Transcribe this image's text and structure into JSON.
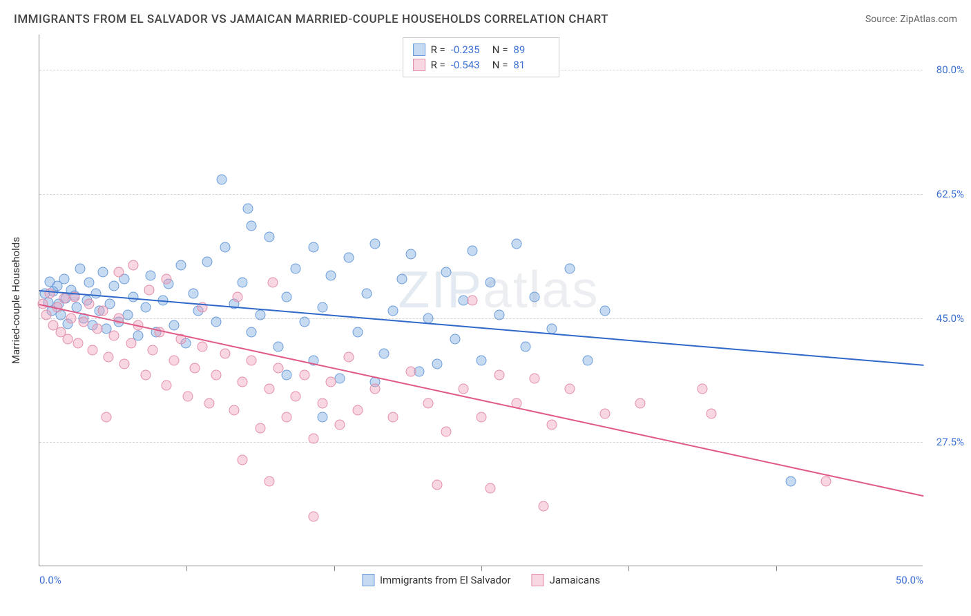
{
  "title": "IMMIGRANTS FROM EL SALVADOR VS JAMAICAN MARRIED-COUPLE HOUSEHOLDS CORRELATION CHART",
  "source_label": "Source:",
  "source_value": "ZipAtlas.com",
  "watermark_bold": "ZIP",
  "watermark_thin": "atlas",
  "y_axis_label": "Married-couple Households",
  "chart": {
    "type": "scatter",
    "xlim": [
      0,
      50
    ],
    "ylim": [
      10,
      85
    ],
    "x_ticks": [
      0,
      50
    ],
    "x_tick_labels": [
      "0.0%",
      "50.0%"
    ],
    "x_minor_ticks": [
      8.33,
      16.67,
      25,
      33.33,
      41.67
    ],
    "y_ticks": [
      27.5,
      45.0,
      62.5,
      80.0
    ],
    "y_tick_labels": [
      "27.5%",
      "45.0%",
      "62.5%",
      "80.0%"
    ],
    "background_color": "#ffffff",
    "grid_color": "#d5d5d5",
    "axis_color": "#888888"
  },
  "series": [
    {
      "name": "Immigrants from El Salvador",
      "fill_color": "rgba(120,168,225,0.42)",
      "stroke_color": "#6a9bd8",
      "line_color": "#2f68c9",
      "R": "-0.235",
      "N": "89",
      "trend": {
        "x1": 0,
        "y1": 49.0,
        "x2": 50,
        "y2": 38.5
      },
      "points": [
        [
          0.3,
          48.5
        ],
        [
          0.5,
          47.2
        ],
        [
          0.6,
          50.1
        ],
        [
          0.7,
          46.0
        ],
        [
          0.8,
          48.8
        ],
        [
          1.0,
          49.5
        ],
        [
          1.1,
          47.0
        ],
        [
          1.2,
          45.5
        ],
        [
          1.4,
          50.5
        ],
        [
          1.5,
          47.8
        ],
        [
          1.6,
          44.2
        ],
        [
          1.8,
          49.0
        ],
        [
          2.0,
          48.2
        ],
        [
          2.1,
          46.5
        ],
        [
          2.3,
          52.0
        ],
        [
          2.5,
          45.0
        ],
        [
          2.7,
          47.5
        ],
        [
          2.8,
          50.0
        ],
        [
          3.0,
          44.0
        ],
        [
          3.2,
          48.5
        ],
        [
          3.4,
          46.0
        ],
        [
          3.6,
          51.5
        ],
        [
          3.8,
          43.5
        ],
        [
          4.0,
          47.0
        ],
        [
          4.2,
          49.5
        ],
        [
          4.5,
          44.5
        ],
        [
          4.8,
          50.5
        ],
        [
          5.0,
          45.5
        ],
        [
          5.3,
          48.0
        ],
        [
          5.6,
          42.5
        ],
        [
          6.0,
          46.5
        ],
        [
          6.3,
          51.0
        ],
        [
          6.6,
          43.0
        ],
        [
          7.0,
          47.5
        ],
        [
          7.3,
          49.8
        ],
        [
          7.6,
          44.0
        ],
        [
          8.0,
          52.5
        ],
        [
          8.3,
          41.5
        ],
        [
          8.7,
          48.5
        ],
        [
          9.0,
          46.0
        ],
        [
          9.5,
          53.0
        ],
        [
          10.0,
          44.5
        ],
        [
          10.5,
          55.0
        ],
        [
          10.3,
          64.5
        ],
        [
          11.0,
          47.0
        ],
        [
          11.5,
          50.0
        ],
        [
          12.0,
          58.0
        ],
        [
          12.0,
          43.0
        ],
        [
          12.5,
          45.5
        ],
        [
          13.0,
          56.5
        ],
        [
          13.5,
          41.0
        ],
        [
          14.0,
          48.0
        ],
        [
          14.5,
          52.0
        ],
        [
          15.0,
          44.5
        ],
        [
          15.5,
          39.0
        ],
        [
          15.5,
          55.0
        ],
        [
          16.0,
          46.5
        ],
        [
          16.5,
          51.0
        ],
        [
          17.0,
          36.5
        ],
        [
          17.5,
          53.5
        ],
        [
          18.0,
          43.0
        ],
        [
          18.5,
          48.5
        ],
        [
          19.0,
          55.5
        ],
        [
          19.5,
          40.0
        ],
        [
          20.0,
          46.0
        ],
        [
          20.5,
          50.5
        ],
        [
          21.0,
          54.0
        ],
        [
          21.5,
          37.5
        ],
        [
          22.0,
          45.0
        ],
        [
          16.0,
          31.0
        ],
        [
          23.0,
          51.5
        ],
        [
          23.5,
          42.0
        ],
        [
          24.0,
          47.5
        ],
        [
          24.5,
          54.5
        ],
        [
          25.0,
          39.0
        ],
        [
          25.5,
          50.0
        ],
        [
          26.0,
          45.5
        ],
        [
          27.0,
          55.5
        ],
        [
          27.5,
          41.0
        ],
        [
          28.0,
          48.0
        ],
        [
          29.0,
          43.5
        ],
        [
          30.0,
          52.0
        ],
        [
          31.0,
          39.0
        ],
        [
          32.0,
          46.0
        ],
        [
          14.0,
          37.0
        ],
        [
          19.0,
          36.0
        ],
        [
          22.5,
          38.5
        ],
        [
          42.5,
          22.0
        ],
        [
          11.8,
          60.5
        ]
      ]
    },
    {
      "name": "Jamaicans",
      "fill_color": "rgba(240,160,185,0.42)",
      "stroke_color": "#e28ea8",
      "line_color": "#e05a85",
      "R": "-0.543",
      "N": "81",
      "trend": {
        "x1": 0,
        "y1": 47.0,
        "x2": 50,
        "y2": 20.0
      },
      "points": [
        [
          0.2,
          47.0
        ],
        [
          0.4,
          45.5
        ],
        [
          0.6,
          48.5
        ],
        [
          0.8,
          44.0
        ],
        [
          1.0,
          46.5
        ],
        [
          1.2,
          43.0
        ],
        [
          1.4,
          47.8
        ],
        [
          1.6,
          42.0
        ],
        [
          1.8,
          45.0
        ],
        [
          2.0,
          48.0
        ],
        [
          2.2,
          41.5
        ],
        [
          2.5,
          44.5
        ],
        [
          2.8,
          47.0
        ],
        [
          3.0,
          40.5
        ],
        [
          3.3,
          43.5
        ],
        [
          3.6,
          46.0
        ],
        [
          3.9,
          39.5
        ],
        [
          4.2,
          42.5
        ],
        [
          4.5,
          45.0
        ],
        [
          4.5,
          51.5
        ],
        [
          4.8,
          38.5
        ],
        [
          5.2,
          41.5
        ],
        [
          5.3,
          52.5
        ],
        [
          5.6,
          44.0
        ],
        [
          6.0,
          37.0
        ],
        [
          6.4,
          40.5
        ],
        [
          6.8,
          43.0
        ],
        [
          7.2,
          35.5
        ],
        [
          7.2,
          50.5
        ],
        [
          7.6,
          39.0
        ],
        [
          8.0,
          42.0
        ],
        [
          8.4,
          34.0
        ],
        [
          8.8,
          38.0
        ],
        [
          9.2,
          41.0
        ],
        [
          3.8,
          31.0
        ],
        [
          9.6,
          33.0
        ],
        [
          10.0,
          37.0
        ],
        [
          10.5,
          40.0
        ],
        [
          11.0,
          32.0
        ],
        [
          11.2,
          48.0
        ],
        [
          11.5,
          36.0
        ],
        [
          12.0,
          39.0
        ],
        [
          12.5,
          29.5
        ],
        [
          13.0,
          35.0
        ],
        [
          13.2,
          50.0
        ],
        [
          13.5,
          38.0
        ],
        [
          14.0,
          31.0
        ],
        [
          14.5,
          34.0
        ],
        [
          15.0,
          37.0
        ],
        [
          11.5,
          25.0
        ],
        [
          15.5,
          28.0
        ],
        [
          16.0,
          33.0
        ],
        [
          16.5,
          36.0
        ],
        [
          17.0,
          30.0
        ],
        [
          17.5,
          39.5
        ],
        [
          18.0,
          32.0
        ],
        [
          13.0,
          22.0
        ],
        [
          19.0,
          35.0
        ],
        [
          15.5,
          17.0
        ],
        [
          20.0,
          31.0
        ],
        [
          21.0,
          37.5
        ],
        [
          22.0,
          33.0
        ],
        [
          23.0,
          29.0
        ],
        [
          24.0,
          35.0
        ],
        [
          24.5,
          47.5
        ],
        [
          25.0,
          31.0
        ],
        [
          26.0,
          37.0
        ],
        [
          27.0,
          33.0
        ],
        [
          28.0,
          36.5
        ],
        [
          22.5,
          21.5
        ],
        [
          29.0,
          30.0
        ],
        [
          30.0,
          35.0
        ],
        [
          25.5,
          21.0
        ],
        [
          32.0,
          31.5
        ],
        [
          28.5,
          18.5
        ],
        [
          34.0,
          33.0
        ],
        [
          38.0,
          31.5
        ],
        [
          37.5,
          35.0
        ],
        [
          44.5,
          22.0
        ],
        [
          9.2,
          46.5
        ],
        [
          6.2,
          49.0
        ]
      ]
    }
  ],
  "legend_top": {
    "r_label": "R =",
    "n_label": "N ="
  },
  "legend_bottom_labels": [
    "Immigrants from El Salvador",
    "Jamaicans"
  ]
}
